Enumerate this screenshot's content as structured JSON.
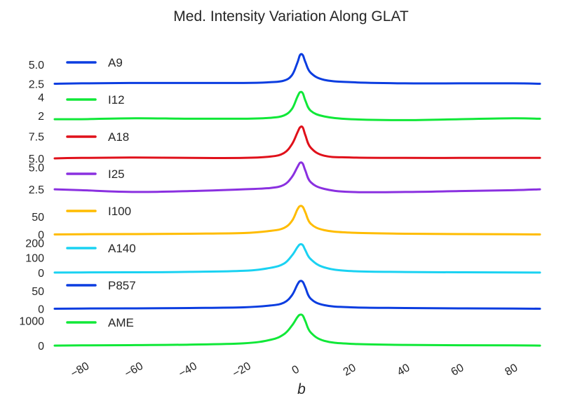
{
  "chart_data": {
    "type": "line",
    "title": "Med. Intensity Variation Along GLAT",
    "xlabel": "b",
    "xlim": [
      -90,
      90
    ],
    "x_ticks": [
      -80,
      -60,
      -40,
      -20,
      0,
      20,
      40,
      60,
      80
    ],
    "x_tick_labels": [
      "−80",
      "−60",
      "−40",
      "−20",
      "0",
      "20",
      "40",
      "60",
      "80"
    ],
    "grid": false,
    "legend_position": "upper-left of each panel",
    "x": [
      -90,
      -80,
      -60,
      -40,
      -20,
      -10,
      -5,
      -2,
      0,
      1,
      2,
      3,
      5,
      10,
      20,
      40,
      60,
      80,
      90
    ],
    "panels": [
      {
        "name": "A9",
        "color": "#0b3de0",
        "yticks": [
          "5.0",
          "2.5"
        ],
        "ytick_values": [
          5.0,
          2.5
        ],
        "ylim": [
          2.0,
          6.8
        ],
        "values": [
          2.5,
          2.55,
          2.6,
          2.6,
          2.6,
          2.7,
          2.9,
          3.6,
          5.2,
          6.2,
          6.2,
          5.3,
          3.9,
          3.0,
          2.7,
          2.55,
          2.55,
          2.55,
          2.5
        ]
      },
      {
        "name": "I12",
        "color": "#10e838",
        "yticks": [
          "4",
          "2"
        ],
        "ytick_values": [
          4,
          2
        ],
        "ylim": [
          1.0,
          5.0
        ],
        "values": [
          1.6,
          1.6,
          1.7,
          1.65,
          1.65,
          1.75,
          2.0,
          2.7,
          4.0,
          4.5,
          4.4,
          3.6,
          2.5,
          1.9,
          1.6,
          1.5,
          1.6,
          1.7,
          1.65
        ]
      },
      {
        "name": "A18",
        "color": "#e0101a",
        "yticks": [
          "7.5",
          "5.0"
        ],
        "ytick_values": [
          7.5,
          5.0
        ],
        "ylim": [
          4.6,
          8.8
        ],
        "values": [
          5.0,
          5.05,
          5.1,
          5.05,
          5.05,
          5.2,
          5.6,
          6.6,
          7.9,
          8.5,
          8.5,
          7.6,
          6.2,
          5.3,
          5.1,
          5.05,
          5.05,
          5.05,
          5.05
        ]
      },
      {
        "name": "I25",
        "color": "#8a30e0",
        "yticks": [
          "5.0",
          "2.5"
        ],
        "ytick_values": [
          5.0,
          2.5
        ],
        "ylim": [
          1.4,
          5.6
        ],
        "values": [
          2.5,
          2.4,
          2.2,
          2.3,
          2.5,
          2.65,
          3.0,
          3.9,
          5.0,
          5.5,
          5.4,
          4.6,
          3.3,
          2.55,
          2.2,
          2.2,
          2.3,
          2.4,
          2.5
        ]
      },
      {
        "name": "I100",
        "color": "#ffbc00",
        "yticks": [
          "50",
          "0"
        ],
        "ytick_values": [
          50,
          0
        ],
        "ylim": [
          -5,
          100
        ],
        "values": [
          0,
          0.5,
          1,
          2,
          4,
          10,
          18,
          38,
          70,
          80,
          78,
          62,
          30,
          12,
          5,
          2,
          1,
          0.5,
          0
        ]
      },
      {
        "name": "A140",
        "color": "#1ad2f2",
        "yticks": [
          "200",
          "100",
          "0"
        ],
        "ytick_values": [
          200,
          100,
          0
        ],
        "ylim": [
          -5,
          245
        ],
        "values": [
          0,
          1,
          2,
          5,
          12,
          32,
          60,
          115,
          170,
          190,
          185,
          150,
          90,
          35,
          10,
          4,
          2,
          1,
          0
        ]
      },
      {
        "name": "P857",
        "color": "#0b3de0",
        "yticks": [
          "50",
          "0"
        ],
        "ytick_values": [
          50,
          0
        ],
        "ylim": [
          -5,
          100
        ],
        "values": [
          0,
          0.5,
          1,
          2,
          4,
          9,
          17,
          38,
          68,
          78,
          76,
          60,
          28,
          10,
          4,
          2,
          1,
          0.5,
          0
        ]
      },
      {
        "name": "AME",
        "color": "#10e838",
        "yticks": [
          "1000",
          "0"
        ],
        "ytick_values": [
          1000,
          0
        ],
        "ylim": [
          -80,
          1400
        ],
        "values": [
          0,
          10,
          20,
          40,
          90,
          230,
          450,
          800,
          1130,
          1230,
          1200,
          970,
          520,
          190,
          70,
          30,
          15,
          10,
          0
        ]
      }
    ]
  }
}
